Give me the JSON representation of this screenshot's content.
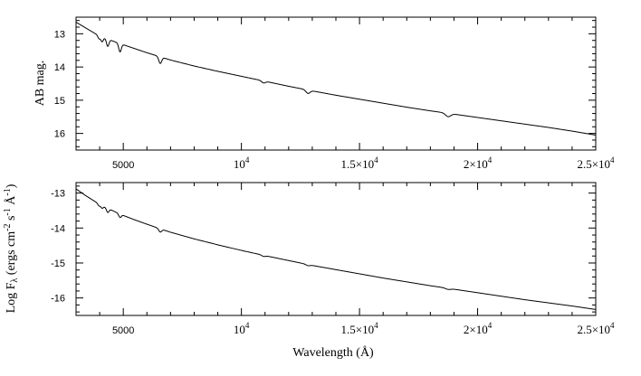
{
  "chart_data": [
    {
      "type": "line",
      "id": "top",
      "ylabel": "AB mag.",
      "xlabel": "",
      "xlim": [
        3000,
        25000
      ],
      "ylim": [
        12.5,
        16.5
      ],
      "y_inverted": true,
      "xticks": [
        {
          "value": 5000,
          "base": "5000",
          "exp": "",
          "small": true
        },
        {
          "value": 10000,
          "base": "10",
          "exp": "4",
          "small": false
        },
        {
          "value": 15000,
          "base": "1.5×10",
          "exp": "4",
          "small": false
        },
        {
          "value": 20000,
          "base": "2×10",
          "exp": "4",
          "small": false
        },
        {
          "value": 25000,
          "base": "2.5×10",
          "exp": "4",
          "small": false
        }
      ],
      "yticks": [
        {
          "value": 13,
          "label": "13"
        },
        {
          "value": 14,
          "label": "14"
        },
        {
          "value": 15,
          "label": "15"
        },
        {
          "value": 16,
          "label": "16"
        }
      ],
      "series": [
        {
          "x": [
            3000,
            3400,
            3800,
            4200,
            4600,
            5000,
            5500,
            6000,
            6500,
            7000,
            8000,
            9000,
            10000,
            11000,
            12000,
            13000,
            14000,
            15000,
            16000,
            17000,
            18000,
            19000,
            20000,
            21000,
            22000,
            23000,
            24000,
            25000
          ],
          "y": [
            12.65,
            12.82,
            12.99,
            13.12,
            13.23,
            13.33,
            13.45,
            13.57,
            13.68,
            13.79,
            13.97,
            14.13,
            14.28,
            14.43,
            14.58,
            14.72,
            14.85,
            14.97,
            15.09,
            15.21,
            15.32,
            15.42,
            15.52,
            15.62,
            15.72,
            15.82,
            15.93,
            16.05
          ]
        }
      ],
      "absorption_features": [
        {
          "x": 3970,
          "depth": 0.1
        },
        {
          "x": 4101,
          "depth": 0.15
        },
        {
          "x": 4340,
          "depth": 0.22
        },
        {
          "x": 4861,
          "depth": 0.25
        },
        {
          "x": 6563,
          "depth": 0.2
        },
        {
          "x": 10938,
          "depth": 0.06
        },
        {
          "x": 12818,
          "depth": 0.1
        },
        {
          "x": 18751,
          "depth": 0.1
        }
      ]
    },
    {
      "type": "line",
      "id": "bottom",
      "ylabel": "Log F",
      "ylabel_sub": "λ",
      "ylabel_rest": " (ergs cm",
      "ylabel_parts": [
        {
          "t": " (ergs cm",
          "sup": "-2"
        },
        {
          "t": " s",
          "sup": "-1"
        },
        {
          "t": " Å",
          "sup": "-1"
        },
        {
          "t": ")",
          "sup": ""
        }
      ],
      "xlabel": "Wavelength (Å)",
      "xlim": [
        3000,
        25000
      ],
      "ylim": [
        -16.5,
        -12.7
      ],
      "xticks": [
        {
          "value": 5000,
          "base": "5000",
          "exp": "",
          "small": true
        },
        {
          "value": 10000,
          "base": "10",
          "exp": "4",
          "small": false
        },
        {
          "value": 15000,
          "base": "1.5×10",
          "exp": "4",
          "small": false
        },
        {
          "value": 20000,
          "base": "2×10",
          "exp": "4",
          "small": false
        },
        {
          "value": 25000,
          "base": "2.5×10",
          "exp": "4",
          "small": false
        }
      ],
      "yticks": [
        {
          "value": -13,
          "label": "-13"
        },
        {
          "value": -14,
          "label": "-14"
        },
        {
          "value": -15,
          "label": "-15"
        },
        {
          "value": -16,
          "label": "-16"
        }
      ],
      "series": [
        {
          "x": [
            3000,
            3400,
            3800,
            4200,
            4600,
            5000,
            5500,
            6000,
            6500,
            7000,
            8000,
            9000,
            10000,
            11000,
            12000,
            13000,
            14000,
            15000,
            16000,
            17000,
            18000,
            19000,
            20000,
            21000,
            22000,
            23000,
            24000,
            25000
          ],
          "y": [
            -12.88,
            -13.07,
            -13.24,
            -13.39,
            -13.52,
            -13.64,
            -13.77,
            -13.89,
            -14.01,
            -14.12,
            -14.31,
            -14.48,
            -14.64,
            -14.79,
            -14.93,
            -15.07,
            -15.19,
            -15.31,
            -15.43,
            -15.54,
            -15.65,
            -15.75,
            -15.85,
            -15.95,
            -16.05,
            -16.14,
            -16.23,
            -16.33
          ]
        }
      ],
      "absorption_features": [
        {
          "x": 3970,
          "depth": 0.06
        },
        {
          "x": 4101,
          "depth": 0.08
        },
        {
          "x": 4340,
          "depth": 0.12
        },
        {
          "x": 4861,
          "depth": 0.1
        },
        {
          "x": 6563,
          "depth": 0.09
        },
        {
          "x": 10938,
          "depth": 0.03
        },
        {
          "x": 12818,
          "depth": 0.03
        },
        {
          "x": 18751,
          "depth": 0.03
        }
      ]
    }
  ]
}
